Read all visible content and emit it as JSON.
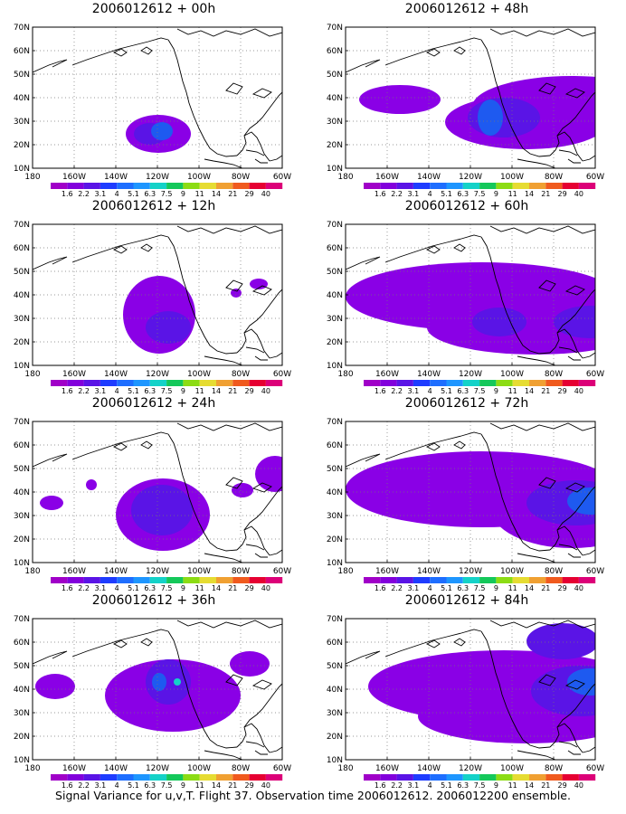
{
  "panels": [
    {
      "title": "2006012612 + 00h",
      "blobs": [
        {
          "cx": 139,
          "cy": 118,
          "rx": 36,
          "ry": 21,
          "c": "#8a00e6"
        },
        {
          "cx": 130,
          "cy": 118,
          "rx": 18,
          "ry": 12,
          "c": "#5a14e6"
        },
        {
          "cx": 143,
          "cy": 115,
          "rx": 12,
          "ry": 10,
          "c": "#1e5af0"
        }
      ]
    },
    {
      "title": "2006012612 + 48h",
      "blobs": [
        {
          "cx": 60,
          "cy": 80,
          "rx": 45,
          "ry": 16,
          "c": "#8a00e6"
        },
        {
          "cx": 250,
          "cy": 88,
          "rx": 110,
          "ry": 34,
          "c": "#8a00e6"
        },
        {
          "cx": 200,
          "cy": 105,
          "rx": 90,
          "ry": 30,
          "c": "#8a00e6"
        },
        {
          "cx": 175,
          "cy": 100,
          "rx": 40,
          "ry": 22,
          "c": "#5a14e6"
        },
        {
          "cx": 160,
          "cy": 100,
          "rx": 14,
          "ry": 20,
          "c": "#1e5af0"
        }
      ]
    },
    {
      "title": "2006012612 + 12h",
      "blobs": [
        {
          "cx": 140,
          "cy": 100,
          "rx": 40,
          "ry": 43,
          "c": "#8a00e6"
        },
        {
          "cx": 150,
          "cy": 114,
          "rx": 25,
          "ry": 18,
          "c": "#5a14e6"
        },
        {
          "cx": 225,
          "cy": 76,
          "rx": 6,
          "ry": 5,
          "c": "#8a00e6"
        },
        {
          "cx": 250,
          "cy": 66,
          "rx": 10,
          "ry": 6,
          "c": "#8a00e6"
        }
      ]
    },
    {
      "title": "2006012612 + 60h",
      "blobs": [
        {
          "cx": 150,
          "cy": 80,
          "rx": 150,
          "ry": 38,
          "c": "#8a00e6"
        },
        {
          "cx": 210,
          "cy": 114,
          "rx": 120,
          "ry": 30,
          "c": "#8a00e6"
        },
        {
          "cx": 270,
          "cy": 108,
          "rx": 40,
          "ry": 18,
          "c": "#5a14e6"
        },
        {
          "cx": 170,
          "cy": 108,
          "rx": 30,
          "ry": 16,
          "c": "#5a14e6"
        }
      ]
    },
    {
      "title": "2006012612 + 24h",
      "blobs": [
        {
          "cx": 21,
          "cy": 90,
          "rx": 13,
          "ry": 8,
          "c": "#8a00e6"
        },
        {
          "cx": 65,
          "cy": 70,
          "rx": 6,
          "ry": 6,
          "c": "#8a00e6"
        },
        {
          "cx": 144,
          "cy": 103,
          "rx": 52,
          "ry": 40,
          "c": "#8a00e6"
        },
        {
          "cx": 143,
          "cy": 98,
          "rx": 34,
          "ry": 28,
          "c": "#5a14e6"
        },
        {
          "cx": 268,
          "cy": 58,
          "rx": 22,
          "ry": 20,
          "c": "#8a00e6"
        },
        {
          "cx": 232,
          "cy": 76,
          "rx": 12,
          "ry": 8,
          "c": "#8a00e6"
        }
      ]
    },
    {
      "title": "2006012612 + 72h",
      "blobs": [
        {
          "cx": 150,
          "cy": 75,
          "rx": 150,
          "ry": 42,
          "c": "#8a00e6"
        },
        {
          "cx": 250,
          "cy": 95,
          "rx": 90,
          "ry": 45,
          "c": "#8a00e6"
        },
        {
          "cx": 255,
          "cy": 90,
          "rx": 55,
          "ry": 25,
          "c": "#5a14e6"
        },
        {
          "cx": 270,
          "cy": 88,
          "rx": 25,
          "ry": 15,
          "c": "#1e5af0"
        }
      ]
    },
    {
      "title": "2006012612 + 36h",
      "blobs": [
        {
          "cx": 25,
          "cy": 75,
          "rx": 22,
          "ry": 14,
          "c": "#8a00e6"
        },
        {
          "cx": 155,
          "cy": 85,
          "rx": 75,
          "ry": 40,
          "c": "#8a00e6"
        },
        {
          "cx": 150,
          "cy": 70,
          "rx": 25,
          "ry": 25,
          "c": "#5a14e6"
        },
        {
          "cx": 140,
          "cy": 70,
          "rx": 8,
          "ry": 10,
          "c": "#1e5af0"
        },
        {
          "cx": 160,
          "cy": 70,
          "rx": 4,
          "ry": 4,
          "c": "#14d2c8"
        },
        {
          "cx": 240,
          "cy": 50,
          "rx": 22,
          "ry": 14,
          "c": "#8a00e6"
        }
      ]
    },
    {
      "title": "2006012612 + 84h",
      "blobs": [
        {
          "cx": 175,
          "cy": 75,
          "rx": 150,
          "ry": 40,
          "c": "#8a00e6"
        },
        {
          "cx": 200,
          "cy": 108,
          "rx": 120,
          "ry": 30,
          "c": "#8a00e6"
        },
        {
          "cx": 260,
          "cy": 80,
          "rx": 55,
          "ry": 28,
          "c": "#5a14e6"
        },
        {
          "cx": 270,
          "cy": 70,
          "rx": 25,
          "ry": 15,
          "c": "#1e5af0"
        },
        {
          "cx": 240,
          "cy": 25,
          "rx": 40,
          "ry": 20,
          "c": "#5a14e6"
        }
      ]
    }
  ],
  "map": {
    "lat_ticks": [
      "70N",
      "60N",
      "50N",
      "40N",
      "30N",
      "20N",
      "10N"
    ],
    "lon_ticks": [
      "180",
      "160W",
      "140W",
      "120W",
      "100W",
      "80W",
      "60W"
    ],
    "cbar_labels": [
      "1.6",
      "2.2",
      "3.1",
      "4",
      "5.1",
      "6.3",
      "7.5",
      "9",
      "11",
      "14",
      "21",
      "29",
      "40"
    ],
    "cbar_colors": [
      "#a000c8",
      "#8200dc",
      "#5a14e6",
      "#1e3cff",
      "#1e6eff",
      "#1e96ff",
      "#14d2c8",
      "#14c85a",
      "#8cdc14",
      "#e6dc32",
      "#f0a032",
      "#f05a1e",
      "#e60032",
      "#dc0078"
    ]
  },
  "footer": "Signal Variance for u,v,T. Flight 37. Observation time 2006012612. 2006012200 ensemble."
}
